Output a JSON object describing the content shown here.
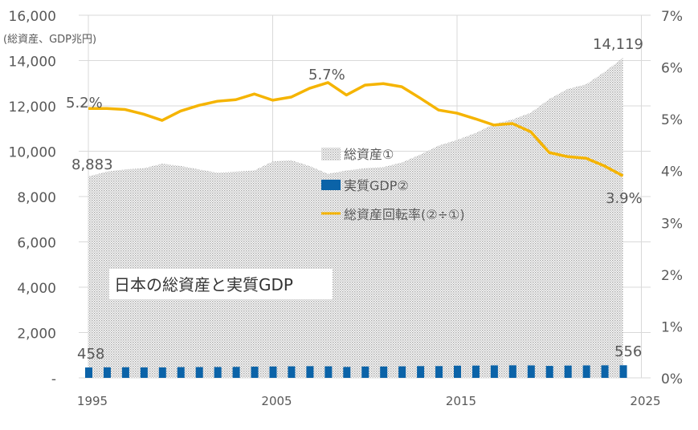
{
  "chart_data": {
    "type": "bar+area+line",
    "title": "日本の総資産と実質GDP",
    "ylabel_left": "(総資産、GDP兆円)",
    "ylim_left": [
      0,
      16000
    ],
    "ylim_right": [
      0,
      7
    ],
    "yticks_left": [
      "-",
      "2,000",
      "4,000",
      "6,000",
      "8,000",
      "10,000",
      "12,000",
      "14,000",
      "16,000"
    ],
    "yticks_right": [
      "0%",
      "1%",
      "2%",
      "3%",
      "4%",
      "5%",
      "6%",
      "7%"
    ],
    "xticks": [
      "1995",
      "2005",
      "2015",
      "2025"
    ],
    "grid": true,
    "legend_placement": "center",
    "x": [
      1995,
      1996,
      1997,
      1998,
      1999,
      2000,
      2001,
      2002,
      2003,
      2004,
      2005,
      2006,
      2007,
      2008,
      2009,
      2010,
      2011,
      2012,
      2013,
      2014,
      2015,
      2016,
      2017,
      2018,
      2019,
      2020,
      2021,
      2022,
      2023,
      2024
    ],
    "series": [
      {
        "name": "総資産①",
        "type": "area",
        "color": "#c8c8c8",
        "values": [
          8883,
          9100,
          9200,
          9250,
          9450,
          9350,
          9200,
          9050,
          9100,
          9150,
          9550,
          9600,
          9350,
          9000,
          9150,
          9250,
          9300,
          9500,
          9850,
          10250,
          10500,
          10800,
          11200,
          11400,
          11700,
          12300,
          12750,
          12950,
          13500,
          14119
        ]
      },
      {
        "name": "実質GDP②",
        "type": "bar",
        "color": "#0b63a8",
        "values": [
          458,
          464,
          468,
          462,
          461,
          473,
          475,
          477,
          484,
          494,
          501,
          508,
          516,
          509,
          481,
          501,
          501,
          508,
          519,
          520,
          538,
          542,
          551,
          554,
          550,
          528,
          543,
          550,
          554,
          556
        ]
      },
      {
        "name": "総資産回転率(②÷①)",
        "type": "line",
        "axis": "right",
        "color": "#f5b400",
        "values": [
          5.2,
          5.2,
          5.18,
          5.09,
          4.97,
          5.15,
          5.26,
          5.34,
          5.37,
          5.48,
          5.36,
          5.42,
          5.59,
          5.7,
          5.46,
          5.65,
          5.68,
          5.62,
          5.4,
          5.17,
          5.11,
          5.0,
          4.88,
          4.91,
          4.75,
          4.35,
          4.27,
          4.24,
          4.09,
          3.9
        ]
      }
    ],
    "annotations": {
      "asset_first": "8,883",
      "asset_last": "14,119",
      "gdp_first": "458",
      "gdp_last": "556",
      "ratio_first": "5.2%",
      "ratio_peak": "5.7%",
      "ratio_last": "3.9%"
    }
  }
}
